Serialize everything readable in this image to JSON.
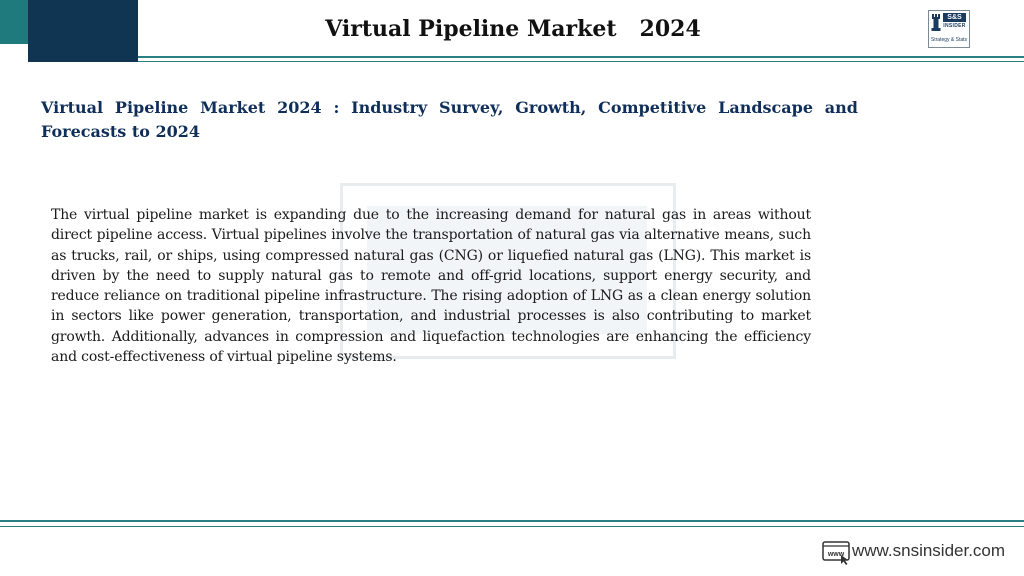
{
  "header": {
    "title": "Virtual Pipeline Market   2024",
    "logo": {
      "brand": "S&S",
      "sub": "INSIDER",
      "tagline": "Strategy & Stats"
    }
  },
  "main": {
    "subtitle": "Virtual Pipeline Market 2024 : Industry Survey, Growth, Competitive Landscape and Forecasts to 2024",
    "paragraph": "The virtual pipeline market is expanding due to the increasing demand for natural gas in areas without direct pipeline access. Virtual pipelines involve the transportation of natural gas via alternative means, such as trucks, rail, or ships, using compressed natural gas (CNG) or liquefied natural gas (LNG). This market is driven by the need to supply natural gas to remote and off-grid locations, support energy security, and reduce reliance on traditional pipeline infrastructure. The rising adoption of LNG as a clean energy solution in sectors like power generation, transportation, and industrial processes is also contributing to market growth. Additionally, advances in compression and liquefaction technologies are enhancing the efficiency and cost-effectiveness of virtual pipeline systems."
  },
  "footer": {
    "url": "www.snsinsider.com",
    "icon": "www-icon"
  },
  "colors": {
    "teal": "#1e7a7c",
    "navy": "#0f3552",
    "subtitle": "#0f2f5a"
  }
}
